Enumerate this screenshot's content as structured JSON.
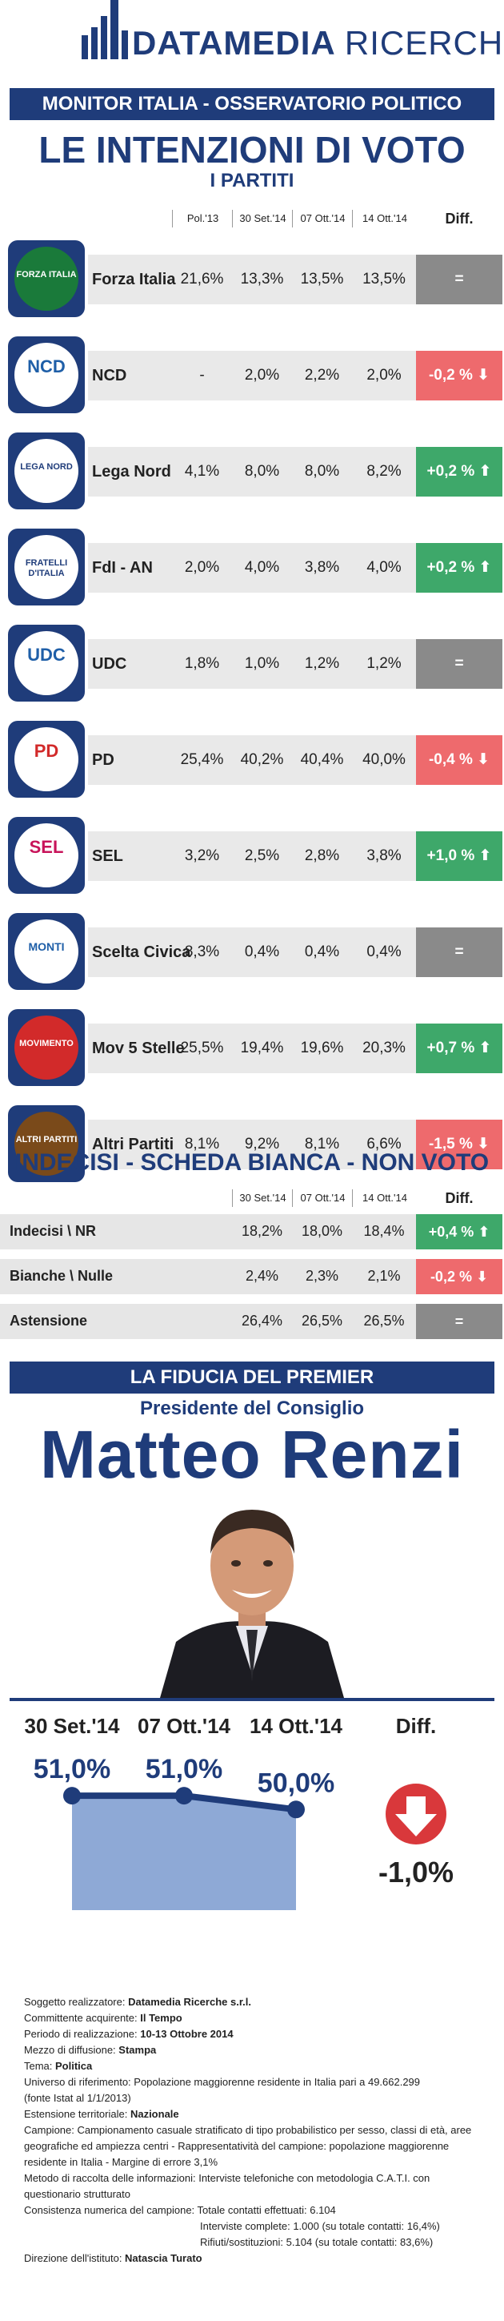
{
  "header": {
    "logo_bold": "DATAMEDIA",
    "logo_rest": "RICERCHE",
    "monitor_bar": "MONITOR ITALIA - OSSERVATORIO POLITICO",
    "title": "LE INTENZIONI DI VOTO",
    "subtitle": "I PARTITI"
  },
  "columns": [
    "Pol.'13",
    "30 Set.'14",
    "07 Ott.'14",
    "14 Ott.'14",
    "Diff."
  ],
  "parties": [
    {
      "name": "Forza Italia",
      "logo_text": "FORZA ITALIA",
      "logo_color": "#1a7a3a",
      "values": [
        "21,6%",
        "13,3%",
        "13,5%",
        "13,5%"
      ],
      "diff": "=",
      "trend": "eq"
    },
    {
      "name": "NCD",
      "logo_text": "NCD",
      "logo_color": "#1f5fa8",
      "values": [
        "-",
        "2,0%",
        "2,2%",
        "2,0%"
      ],
      "diff": "-0,2 %",
      "trend": "down"
    },
    {
      "name": "Lega Nord",
      "logo_text": "LEGA NORD",
      "logo_color": "#1f3c7a",
      "values": [
        "4,1%",
        "8,0%",
        "8,0%",
        "8,2%"
      ],
      "diff": "+0,2 %",
      "trend": "up"
    },
    {
      "name": "FdI - AN",
      "logo_text": "FRATELLI D'ITALIA",
      "logo_color": "#1f3c7a",
      "values": [
        "2,0%",
        "4,0%",
        "3,8%",
        "4,0%"
      ],
      "diff": "+0,2 %",
      "trend": "up"
    },
    {
      "name": "UDC",
      "logo_text": "UDC",
      "logo_color": "#1f5fa8",
      "values": [
        "1,8%",
        "1,0%",
        "1,2%",
        "1,2%"
      ],
      "diff": "=",
      "trend": "eq"
    },
    {
      "name": "PD",
      "logo_text": "PD",
      "logo_color": "#d22a2a",
      "values": [
        "25,4%",
        "40,2%",
        "40,4%",
        "40,0%"
      ],
      "diff": "-0,4 %",
      "trend": "down"
    },
    {
      "name": "SEL",
      "logo_text": "SEL",
      "logo_color": "#c8145a",
      "values": [
        "3,2%",
        "2,5%",
        "2,8%",
        "3,8%"
      ],
      "diff": "+1,0 %",
      "trend": "up"
    },
    {
      "name": "Scelta Civica",
      "logo_text": "MONTI",
      "logo_color": "#1f5fa8",
      "values": [
        "8,3%",
        "0,4%",
        "0,4%",
        "0,4%"
      ],
      "diff": "=",
      "trend": "eq"
    },
    {
      "name": "Mov 5 Stelle",
      "logo_text": "MOVIMENTO",
      "logo_color": "#d22a2a",
      "values": [
        "25,5%",
        "19,4%",
        "19,6%",
        "20,3%"
      ],
      "diff": "+0,7 %",
      "trend": "up"
    },
    {
      "name": "Altri Partiti",
      "logo_text": "ALTRI PARTITI",
      "logo_color": "#7a4a1a",
      "values": [
        "8,1%",
        "9,2%",
        "8,1%",
        "6,6%"
      ],
      "diff": "-1,5 %",
      "trend": "down"
    }
  ],
  "indecisi": {
    "title": "INDECISI - SCHEDA BIANCA - NON VOTO",
    "columns": [
      "30 Set.'14",
      "07 Ott.'14",
      "14 Ott.'14",
      "Diff."
    ],
    "rows": [
      {
        "label": "Indecisi \\ NR",
        "values": [
          "18,2%",
          "18,0%",
          "18,4%"
        ],
        "diff": "+0,4 %",
        "trend": "up"
      },
      {
        "label": "Bianche \\ Nulle",
        "values": [
          "2,4%",
          "2,3%",
          "2,1%"
        ],
        "diff": "-0,2 %",
        "trend": "down"
      },
      {
        "label": "Astensione",
        "values": [
          "26,4%",
          "26,5%",
          "26,5%"
        ],
        "diff": "=",
        "trend": "eq"
      }
    ]
  },
  "premier": {
    "bar": "LA FIDUCIA DEL PREMIER",
    "role": "Presidente del Consiglio",
    "name": "Matteo Renzi",
    "dates": [
      "30 Set.'14",
      "07 Ott.'14",
      "14 Ott.'14",
      "Diff."
    ],
    "diff_value": "-1,0%"
  },
  "chart_data": {
    "type": "area",
    "categories": [
      "30 Set.'14",
      "07 Ott.'14",
      "14 Ott.'14"
    ],
    "values": [
      51.0,
      51.0,
      50.0
    ],
    "labels": [
      "51,0%",
      "51,0%",
      "50,0%"
    ],
    "ylim": [
      45,
      52
    ]
  },
  "colors": {
    "brand": "#1f3c7a",
    "up": "#3ea86a",
    "down": "#ee6a6d",
    "eq": "#8a8a8a",
    "band": "#e9e9e9",
    "area": "#8ea9d6"
  },
  "notes": [
    {
      "k": "Soggetto realizzatore: ",
      "v": "Datamedia Ricerche s.r.l."
    },
    {
      "k": "Committente acquirente: ",
      "v": "Il Tempo"
    },
    {
      "k": "Periodo di realizzazione: ",
      "v": "10-13 Ottobre 2014"
    },
    {
      "k": "Mezzo di diffusione: ",
      "v": "Stampa"
    },
    {
      "k": "Tema: ",
      "v": "Politica"
    },
    {
      "k": "Universo di riferimento: Popolazione maggiorenne residente in Italia pari a 49.662.299",
      "v": ""
    },
    {
      "k": "(fonte Istat al 1/1/2013)",
      "v": ""
    },
    {
      "k": "Estensione territoriale: ",
      "v": "Nazionale"
    },
    {
      "k": "Campione: Campionamento casuale stratificato di tipo probabilistico per sesso, classi di età, aree geografiche ed ampiezza centri - Rappresentatività del campione: popolazione maggiorenne residente in Italia - Margine di errore 3,1%",
      "v": ""
    },
    {
      "k": "Metodo di raccolta delle informazioni: Interviste telefoniche con metodologia C.A.T.I. con questionario strutturato",
      "v": ""
    },
    {
      "k": "Consistenza numerica del campione: Totale contatti effettuati: 6.104",
      "v": ""
    },
    {
      "k": "Interviste complete: 1.000 (su totale contatti: 16,4%)",
      "v": "",
      "indent": true
    },
    {
      "k": "Rifiuti/sostituzioni: 5.104 (su totale contatti: 83,6%)",
      "v": "",
      "indent": true
    },
    {
      "k": "Direzione dell'istituto: ",
      "v": "Natascia Turato"
    }
  ]
}
